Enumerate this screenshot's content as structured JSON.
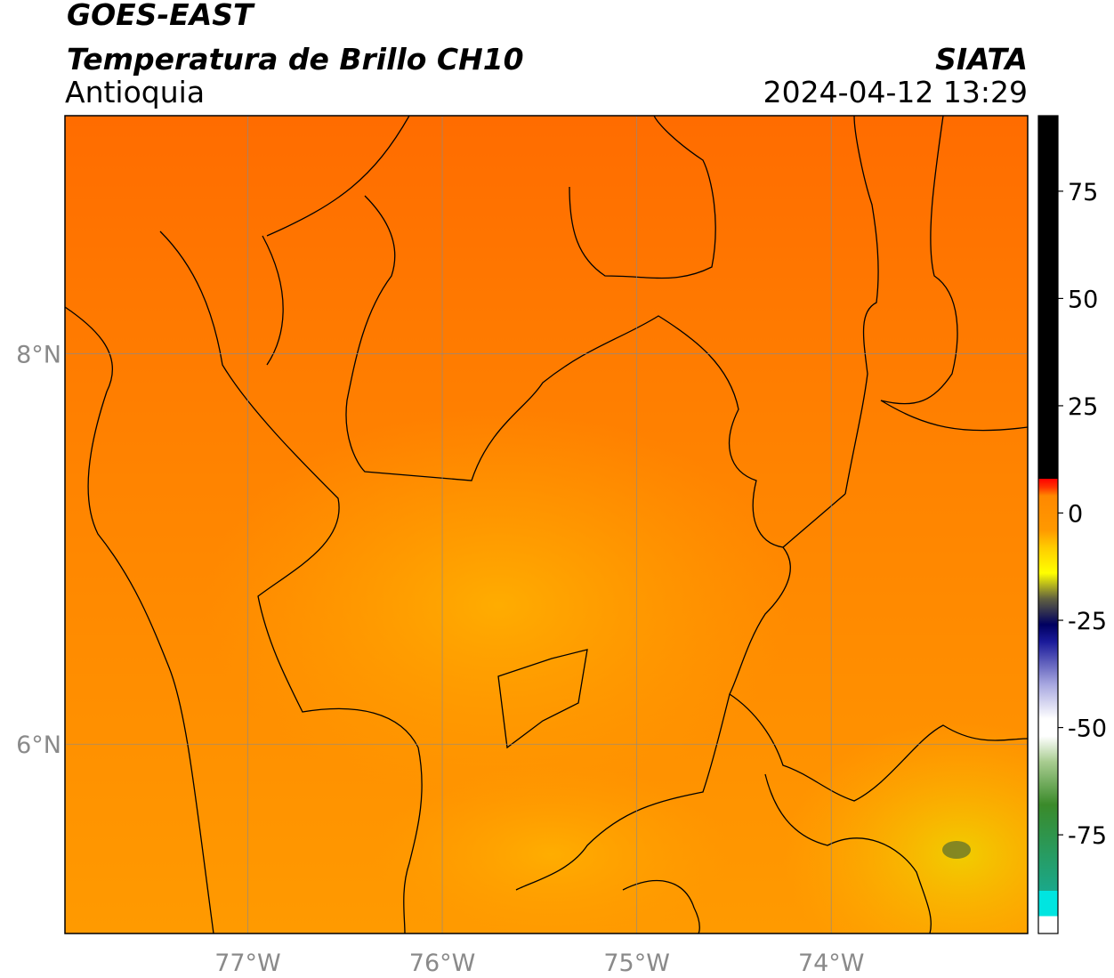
{
  "header": {
    "title": "GOES-EAST",
    "subtitle": "Temperatura de Brillo CH10",
    "region": "Antioquia",
    "source": "SIATA",
    "timestamp": "2024-04-12 13:29"
  },
  "map": {
    "xlim": [
      -77.94,
      -72.99
    ],
    "ylim": [
      5.03,
      9.22
    ],
    "xticks": [
      {
        "value": -77,
        "label": "77°W"
      },
      {
        "value": -76,
        "label": "76°W"
      },
      {
        "value": -75,
        "label": "75°W"
      },
      {
        "value": -74,
        "label": "74°W"
      }
    ],
    "yticks": [
      {
        "value": 6,
        "label": "6°N"
      },
      {
        "value": 8,
        "label": "8°N"
      }
    ],
    "grid": true
  },
  "colorbar": {
    "lim": [
      -98,
      92.6
    ],
    "ticks": [
      -75,
      -50,
      -25,
      0,
      25,
      50,
      75
    ],
    "stops": [
      [
        -98,
        "#ffffff"
      ],
      [
        -94,
        "#ffffff"
      ],
      [
        -94,
        "#00e5e0"
      ],
      [
        -88,
        "#00e5e0"
      ],
      [
        -88,
        "#1aa88a"
      ],
      [
        -68,
        "#3a8a2a"
      ],
      [
        -58,
        "#a8cc90"
      ],
      [
        -52,
        "#ffffff"
      ],
      [
        -48,
        "#ffffff"
      ],
      [
        -40,
        "#a8a8e0"
      ],
      [
        -30,
        "#1a1a9a"
      ],
      [
        -26,
        "#000060"
      ],
      [
        -20,
        "#606040"
      ],
      [
        -14,
        "#ffff00"
      ],
      [
        -8,
        "#ffcc00"
      ],
      [
        -4,
        "#ff9900"
      ],
      [
        4,
        "#ff8800"
      ],
      [
        6,
        "#ff3300"
      ],
      [
        8,
        "#ff0000"
      ],
      [
        8,
        "#000000"
      ],
      [
        92.6,
        "#000000"
      ]
    ]
  }
}
